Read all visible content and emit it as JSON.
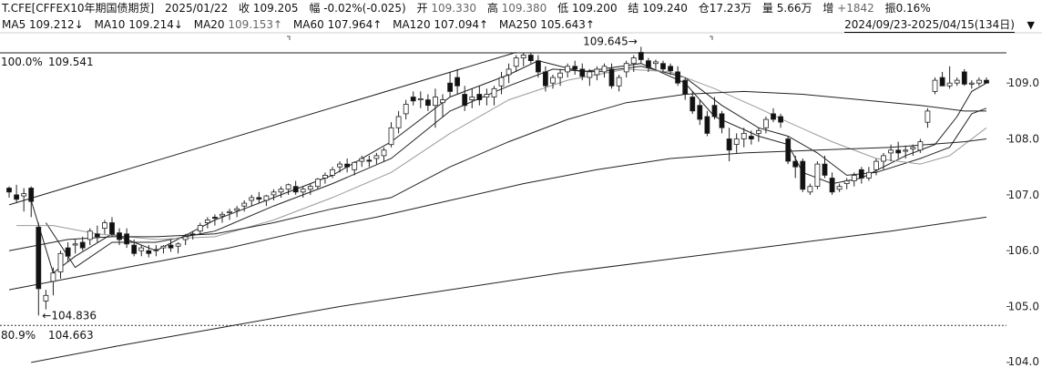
{
  "header": {
    "symbol": "T.CFE[CFFEX10年期国债期货]",
    "date": "2025/01/22",
    "close_label": "收",
    "close": "109.205",
    "chg_label": "幅",
    "chg": "-0.02%(-0.025)",
    "open_label": "开",
    "open": "109.330",
    "high_label": "高",
    "high": "109.380",
    "low_label": "低",
    "low": "109.200",
    "settle_label": "结",
    "settle": "109.240",
    "oi_label": "仓",
    "oi": "17.23万",
    "vol_label": "量",
    "vol": "5.66万",
    "inc_label": "增",
    "inc": "+1842",
    "amp_label": "振",
    "amp": "0.16%"
  },
  "ma": {
    "ma5_label": "MA5",
    "ma5": "109.212↓",
    "ma10_label": "MA10",
    "ma10": "109.214↓",
    "ma20_label": "MA20",
    "ma20": "109.153↑",
    "ma60_label": "MA60",
    "ma60": "107.964↑",
    "ma120_label": "MA120",
    "ma120": "107.094↑",
    "ma250_label": "MA250",
    "ma250": "105.643↑"
  },
  "range": "2024/09/23-2025/04/15(134日)",
  "range_dropdown": "▼",
  "colors": {
    "up": "#ffffff",
    "down": "#111111",
    "ma_dark": "#222222",
    "ma_light": "#9a9a9a"
  },
  "chart_data": {
    "type": "candlestick",
    "ylim": [
      103.9,
      109.9
    ],
    "y_ticks": [
      "109.0",
      "108.0",
      "107.0",
      "106.0",
      "105.0",
      "104.0"
    ],
    "y_tick_values": [
      109.0,
      108.0,
      107.0,
      106.0,
      105.0,
      104.0
    ],
    "max_line": {
      "pct": "100.0%",
      "value": "109.541",
      "price": 109.541
    },
    "min_line": {
      "pct": "80.9%",
      "value": "104.663",
      "price": 104.663
    },
    "high_marker": {
      "text": "109.645→",
      "price": 109.645,
      "index": 86
    },
    "low_marker": {
      "text": "←104.836",
      "price": 104.836,
      "index": 4
    },
    "trendline": [
      [
        0,
        106.82
      ],
      [
        69,
        109.55
      ]
    ],
    "candles": [
      [
        107.12,
        107.15,
        106.95,
        107.05
      ],
      [
        107.0,
        107.18,
        106.85,
        106.92
      ],
      [
        106.98,
        107.12,
        106.7,
        107.02
      ],
      [
        107.12,
        107.15,
        106.6,
        106.88
      ],
      [
        106.42,
        106.5,
        104.84,
        105.32
      ],
      [
        105.1,
        105.3,
        104.95,
        105.2
      ],
      [
        105.45,
        105.7,
        105.2,
        105.6
      ],
      [
        105.62,
        106.0,
        105.5,
        105.95
      ],
      [
        106.05,
        106.15,
        105.8,
        105.9
      ],
      [
        106.1,
        106.2,
        105.95,
        106.12
      ],
      [
        106.15,
        106.25,
        106.0,
        106.05
      ],
      [
        106.2,
        106.4,
        106.1,
        106.35
      ],
      [
        106.3,
        106.45,
        106.15,
        106.25
      ],
      [
        106.4,
        106.55,
        106.3,
        106.5
      ],
      [
        106.5,
        106.6,
        106.25,
        106.3
      ],
      [
        106.32,
        106.4,
        106.1,
        106.2
      ],
      [
        106.3,
        106.4,
        106.05,
        106.12
      ],
      [
        106.1,
        106.2,
        105.9,
        105.95
      ],
      [
        106.0,
        106.1,
        105.9,
        106.05
      ],
      [
        106.0,
        106.1,
        105.88,
        105.95
      ],
      [
        106.02,
        106.1,
        105.9,
        106.0
      ],
      [
        106.05,
        106.1,
        105.95,
        106.08
      ],
      [
        106.1,
        106.2,
        105.98,
        106.05
      ],
      [
        106.08,
        106.15,
        105.95,
        106.12
      ],
      [
        106.2,
        106.3,
        106.1,
        106.25
      ],
      [
        106.3,
        106.35,
        106.2,
        106.28
      ],
      [
        106.35,
        106.5,
        106.3,
        106.45
      ],
      [
        106.5,
        106.6,
        106.4,
        106.55
      ],
      [
        106.6,
        106.65,
        106.45,
        106.58
      ],
      [
        106.62,
        106.7,
        106.5,
        106.65
      ],
      [
        106.68,
        106.75,
        106.55,
        106.7
      ],
      [
        106.72,
        106.8,
        106.6,
        106.75
      ],
      [
        106.8,
        106.9,
        106.7,
        106.85
      ],
      [
        106.9,
        107.0,
        106.8,
        106.95
      ],
      [
        106.95,
        107.05,
        106.85,
        106.92
      ],
      [
        106.9,
        107.0,
        106.8,
        106.98
      ],
      [
        107.0,
        107.1,
        106.9,
        107.05
      ],
      [
        107.05,
        107.15,
        106.95,
        107.1
      ],
      [
        107.1,
        107.2,
        107.0,
        107.18
      ],
      [
        107.15,
        107.25,
        107.0,
        107.05
      ],
      [
        107.05,
        107.15,
        106.95,
        107.1
      ],
      [
        107.1,
        107.2,
        107.0,
        107.15
      ],
      [
        107.15,
        107.3,
        107.1,
        107.28
      ],
      [
        107.3,
        107.4,
        107.2,
        107.35
      ],
      [
        107.35,
        107.5,
        107.3,
        107.45
      ],
      [
        107.5,
        107.6,
        107.4,
        107.55
      ],
      [
        107.55,
        107.65,
        107.4,
        107.5
      ],
      [
        107.45,
        107.6,
        107.35,
        107.58
      ],
      [
        107.6,
        107.7,
        107.5,
        107.65
      ],
      [
        107.62,
        107.7,
        107.5,
        107.6
      ],
      [
        107.65,
        107.75,
        107.55,
        107.7
      ],
      [
        107.7,
        107.85,
        107.6,
        107.8
      ],
      [
        107.9,
        108.3,
        107.85,
        108.2
      ],
      [
        108.2,
        108.5,
        108.1,
        108.4
      ],
      [
        108.45,
        108.7,
        108.35,
        108.62
      ],
      [
        108.75,
        108.85,
        108.6,
        108.68
      ],
      [
        108.7,
        108.85,
        108.55,
        108.72
      ],
      [
        108.7,
        108.8,
        108.5,
        108.6
      ],
      [
        108.6,
        108.9,
        108.2,
        108.75
      ],
      [
        108.65,
        108.8,
        108.4,
        108.7
      ],
      [
        109.0,
        109.2,
        108.75,
        108.85
      ],
      [
        109.1,
        109.25,
        108.8,
        108.95
      ],
      [
        108.8,
        108.95,
        108.5,
        108.6
      ],
      [
        108.7,
        108.9,
        108.55,
        108.75
      ],
      [
        108.8,
        108.95,
        108.6,
        108.7
      ],
      [
        108.75,
        108.9,
        108.6,
        108.8
      ],
      [
        108.75,
        108.95,
        108.6,
        108.9
      ],
      [
        108.95,
        109.2,
        108.8,
        109.1
      ],
      [
        109.15,
        109.35,
        109.0,
        109.25
      ],
      [
        109.3,
        109.5,
        109.2,
        109.45
      ],
      [
        109.45,
        109.55,
        109.3,
        109.5
      ],
      [
        109.5,
        109.55,
        109.35,
        109.4
      ],
      [
        109.4,
        109.5,
        109.1,
        109.2
      ],
      [
        109.2,
        109.3,
        108.85,
        108.95
      ],
      [
        109.0,
        109.15,
        108.9,
        109.1
      ],
      [
        109.1,
        109.25,
        108.95,
        109.18
      ],
      [
        109.2,
        109.35,
        109.1,
        109.3
      ],
      [
        109.3,
        109.4,
        109.15,
        109.25
      ],
      [
        109.25,
        109.35,
        109.05,
        109.12
      ],
      [
        109.1,
        109.25,
        108.95,
        109.2
      ],
      [
        109.15,
        109.3,
        109.05,
        109.25
      ],
      [
        109.2,
        109.35,
        109.1,
        109.3
      ],
      [
        109.25,
        109.35,
        108.9,
        108.95
      ],
      [
        108.95,
        109.15,
        108.85,
        109.1
      ],
      [
        109.2,
        109.4,
        109.1,
        109.35
      ],
      [
        109.35,
        109.5,
        109.2,
        109.45
      ],
      [
        109.55,
        109.65,
        109.35,
        109.42
      ],
      [
        109.4,
        109.45,
        109.2,
        109.28
      ],
      [
        109.35,
        109.42,
        109.25,
        109.38
      ],
      [
        109.35,
        109.4,
        109.2,
        109.25
      ],
      [
        109.3,
        109.35,
        109.15,
        109.22
      ],
      [
        109.2,
        109.3,
        108.95,
        109.0
      ],
      [
        109.05,
        109.1,
        108.7,
        108.8
      ],
      [
        108.75,
        108.85,
        108.45,
        108.5
      ],
      [
        108.6,
        108.7,
        108.25,
        108.35
      ],
      [
        108.4,
        108.5,
        108.05,
        108.1
      ],
      [
        108.6,
        108.75,
        108.35,
        108.4
      ],
      [
        108.45,
        108.5,
        108.1,
        108.2
      ],
      [
        108.0,
        108.2,
        107.6,
        107.8
      ],
      [
        107.9,
        108.1,
        107.75,
        108.0
      ],
      [
        108.0,
        108.2,
        107.85,
        108.1
      ],
      [
        108.05,
        108.15,
        107.9,
        108.0
      ],
      [
        108.1,
        108.2,
        107.95,
        108.15
      ],
      [
        108.2,
        108.4,
        108.1,
        108.35
      ],
      [
        108.45,
        108.55,
        108.3,
        108.35
      ],
      [
        108.4,
        108.45,
        108.2,
        108.3
      ],
      [
        108.0,
        108.05,
        107.55,
        107.6
      ],
      [
        107.6,
        107.7,
        107.3,
        107.5
      ],
      [
        107.6,
        107.65,
        107.05,
        107.1
      ],
      [
        107.05,
        107.2,
        107.0,
        107.15
      ],
      [
        107.15,
        107.6,
        107.1,
        107.55
      ],
      [
        107.55,
        107.7,
        107.3,
        107.35
      ],
      [
        107.3,
        107.4,
        107.0,
        107.05
      ],
      [
        107.1,
        107.2,
        107.05,
        107.15
      ],
      [
        107.2,
        107.3,
        107.1,
        107.25
      ],
      [
        107.25,
        107.4,
        107.15,
        107.35
      ],
      [
        107.45,
        107.5,
        107.2,
        107.3
      ],
      [
        107.3,
        107.5,
        107.25,
        107.4
      ],
      [
        107.45,
        107.65,
        107.35,
        107.6
      ],
      [
        107.6,
        107.75,
        107.45,
        107.7
      ],
      [
        107.75,
        107.9,
        107.6,
        107.8
      ],
      [
        107.8,
        107.95,
        107.65,
        107.75
      ],
      [
        107.78,
        107.88,
        107.65,
        107.8
      ],
      [
        107.82,
        107.9,
        107.7,
        107.85
      ],
      [
        107.8,
        108.0,
        107.75,
        107.95
      ],
      [
        108.3,
        108.55,
        108.2,
        108.5
      ],
      [
        108.85,
        109.1,
        108.8,
        109.05
      ],
      [
        109.1,
        109.2,
        108.95,
        108.95
      ],
      [
        108.95,
        109.3,
        108.9,
        109.0
      ],
      [
        109.0,
        109.1,
        108.95,
        109.05
      ],
      [
        109.2,
        109.25,
        108.95,
        108.98
      ],
      [
        108.98,
        109.05,
        108.9,
        109.0
      ],
      [
        109.0,
        109.1,
        108.95,
        109.05
      ],
      [
        109.05,
        109.1,
        109.0,
        109.0
      ]
    ],
    "ma_lines": [
      {
        "name": "MA5",
        "color": "#222222",
        "points": [
          [
            3,
            106.9
          ],
          [
            6,
            105.6
          ],
          [
            9,
            105.9
          ],
          [
            14,
            106.3
          ],
          [
            20,
            106.0
          ],
          [
            28,
            106.55
          ],
          [
            36,
            106.95
          ],
          [
            44,
            107.35
          ],
          [
            52,
            107.95
          ],
          [
            60,
            108.75
          ],
          [
            68,
            109.15
          ],
          [
            72,
            109.4
          ],
          [
            78,
            109.2
          ],
          [
            86,
            109.35
          ],
          [
            92,
            109.0
          ],
          [
            96,
            108.4
          ],
          [
            102,
            108.05
          ],
          [
            106,
            107.9
          ],
          [
            108,
            107.4
          ],
          [
            112,
            107.2
          ],
          [
            116,
            107.3
          ],
          [
            122,
            107.7
          ],
          [
            126,
            107.9
          ],
          [
            129,
            108.4
          ],
          [
            131,
            108.85
          ],
          [
            133,
            109.0
          ]
        ]
      },
      {
        "name": "MA10",
        "color": "#222222",
        "points": [
          [
            5,
            106.5
          ],
          [
            9,
            105.7
          ],
          [
            14,
            106.15
          ],
          [
            20,
            106.15
          ],
          [
            28,
            106.35
          ],
          [
            36,
            106.8
          ],
          [
            44,
            107.2
          ],
          [
            52,
            107.65
          ],
          [
            60,
            108.5
          ],
          [
            68,
            108.95
          ],
          [
            74,
            109.25
          ],
          [
            80,
            109.2
          ],
          [
            86,
            109.3
          ],
          [
            92,
            109.1
          ],
          [
            97,
            108.6
          ],
          [
            102,
            108.2
          ],
          [
            106,
            108.05
          ],
          [
            110,
            107.75
          ],
          [
            114,
            107.35
          ],
          [
            118,
            107.4
          ],
          [
            124,
            107.65
          ],
          [
            128,
            107.85
          ],
          [
            131,
            108.45
          ],
          [
            133,
            108.55
          ]
        ]
      },
      {
        "name": "MA20",
        "color": "#9a9a9a",
        "points": [
          [
            1,
            106.45
          ],
          [
            6,
            106.45
          ],
          [
            12,
            106.3
          ],
          [
            20,
            106.2
          ],
          [
            28,
            106.25
          ],
          [
            36,
            106.55
          ],
          [
            44,
            106.95
          ],
          [
            52,
            107.4
          ],
          [
            60,
            108.1
          ],
          [
            68,
            108.7
          ],
          [
            76,
            109.05
          ],
          [
            84,
            109.25
          ],
          [
            90,
            109.2
          ],
          [
            96,
            108.9
          ],
          [
            102,
            108.55
          ],
          [
            106,
            108.3
          ],
          [
            112,
            107.95
          ],
          [
            118,
            107.65
          ],
          [
            124,
            107.55
          ],
          [
            128,
            107.7
          ],
          [
            133,
            108.2
          ]
        ]
      },
      {
        "name": "MA60",
        "color": "#222222",
        "points": [
          [
            0,
            106.0
          ],
          [
            8,
            106.2
          ],
          [
            14,
            106.25
          ],
          [
            20,
            106.25
          ],
          [
            28,
            106.3
          ],
          [
            36,
            106.5
          ],
          [
            44,
            106.75
          ],
          [
            52,
            106.95
          ],
          [
            60,
            107.5
          ],
          [
            68,
            107.95
          ],
          [
            76,
            108.35
          ],
          [
            84,
            108.65
          ],
          [
            92,
            108.8
          ],
          [
            100,
            108.85
          ],
          [
            108,
            108.8
          ],
          [
            116,
            108.7
          ],
          [
            124,
            108.6
          ],
          [
            130,
            108.5
          ],
          [
            133,
            108.5
          ]
        ]
      },
      {
        "name": "MA120",
        "color": "#222222",
        "points": [
          [
            0,
            105.3
          ],
          [
            10,
            105.55
          ],
          [
            20,
            105.8
          ],
          [
            30,
            106.05
          ],
          [
            40,
            106.35
          ],
          [
            50,
            106.6
          ],
          [
            60,
            106.9
          ],
          [
            70,
            107.2
          ],
          [
            80,
            107.45
          ],
          [
            90,
            107.65
          ],
          [
            100,
            107.75
          ],
          [
            110,
            107.8
          ],
          [
            120,
            107.85
          ],
          [
            130,
            107.95
          ],
          [
            133,
            108.0
          ]
        ]
      },
      {
        "name": "MA250",
        "color": "#222222",
        "points": [
          [
            3,
            104.0
          ],
          [
            15,
            104.3
          ],
          [
            30,
            104.65
          ],
          [
            45,
            105.0
          ],
          [
            60,
            105.3
          ],
          [
            75,
            105.6
          ],
          [
            90,
            105.85
          ],
          [
            105,
            106.1
          ],
          [
            120,
            106.35
          ],
          [
            133,
            106.6
          ]
        ]
      }
    ]
  }
}
